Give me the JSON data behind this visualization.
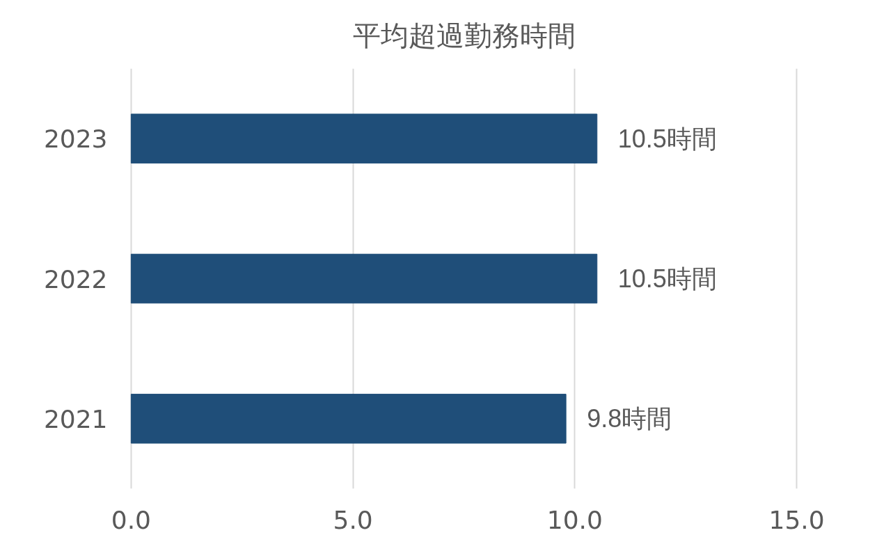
{
  "chart_data": {
    "type": "bar",
    "orientation": "horizontal",
    "title": "平均超過勤務時間",
    "categories": [
      "2023",
      "2022",
      "2021"
    ],
    "values": [
      10.5,
      10.5,
      9.8
    ],
    "value_labels": [
      "10.5時間",
      "10.5時間",
      "9.8時間"
    ],
    "color": "#1f4e79",
    "xlim": [
      0,
      15
    ],
    "xticks": [
      {
        "value": 0,
        "label": "0.0"
      },
      {
        "value": 5,
        "label": "5.0"
      },
      {
        "value": 10,
        "label": "10.0"
      },
      {
        "value": 15,
        "label": "15.0"
      }
    ],
    "grid": "x"
  }
}
